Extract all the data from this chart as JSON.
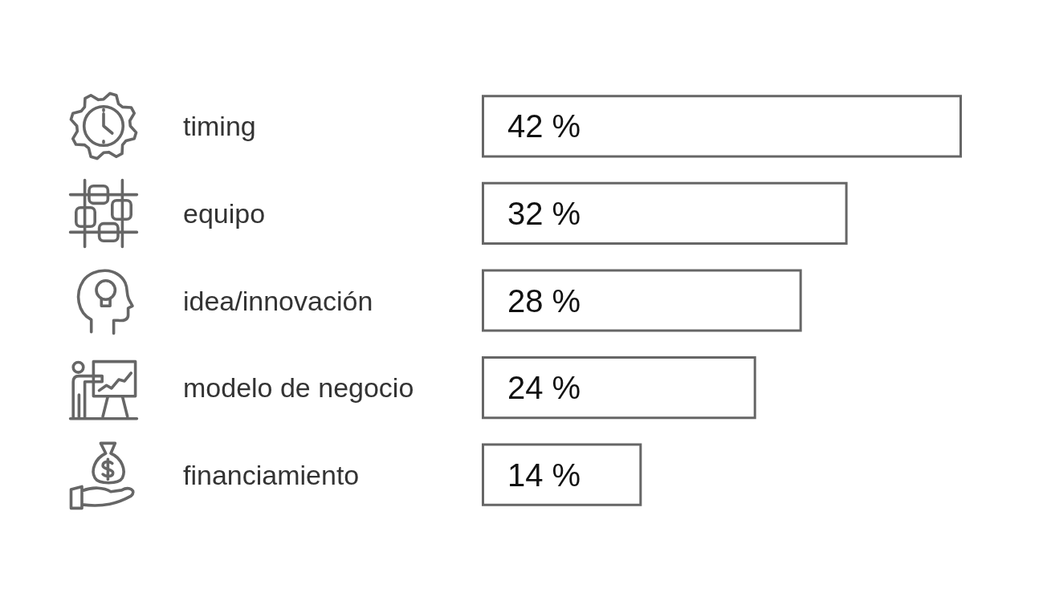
{
  "chart_data": {
    "type": "bar",
    "orientation": "horizontal",
    "categories": [
      "timing",
      "equipo",
      "idea/innovación",
      "modelo de negocio",
      "financiamiento"
    ],
    "values": [
      42,
      32,
      28,
      24,
      14
    ],
    "value_labels": [
      "42 %",
      "32 %",
      "28 %",
      "24 %",
      "14 %"
    ],
    "color": "#666666"
  }
}
